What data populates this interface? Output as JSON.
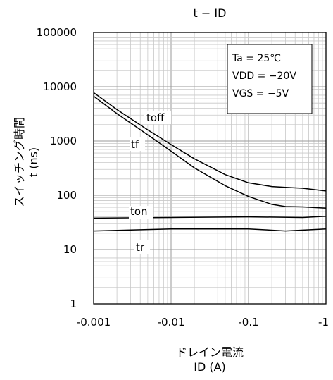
{
  "chart_data": {
    "type": "line",
    "title": "t − ID",
    "xlabel": "ドレイン電流",
    "xlabel_unit": "ID (A)",
    "ylabel": "スイッチング時間",
    "ylabel_unit": "t (ns)",
    "x_scale": "log",
    "y_scale": "log",
    "xlim": [
      -0.001,
      -1
    ],
    "ylim": [
      1,
      100000
    ],
    "x_tick_labels": [
      "-0.001",
      "-0.01",
      "-0.1",
      "-1"
    ],
    "y_tick_labels": [
      "100000",
      "10000",
      "1000",
      "100",
      "10",
      "1"
    ],
    "grid": true,
    "conditions": [
      "Ta = 25℃",
      "VDD = −20V",
      "VGS = −5V"
    ],
    "conditions_position": "top-right",
    "series": [
      {
        "name": "toff",
        "x": [
          -0.001,
          -0.002,
          -0.005,
          -0.01,
          -0.02,
          -0.05,
          -0.1,
          -0.2,
          -0.3,
          -0.5,
          -1
        ],
        "y": [
          7800,
          3800,
          1600,
          860,
          470,
          240,
          170,
          145,
          140,
          135,
          120
        ]
      },
      {
        "name": "tf",
        "x": [
          -0.001,
          -0.002,
          -0.005,
          -0.01,
          -0.02,
          -0.05,
          -0.1,
          -0.2,
          -0.3,
          -0.5,
          -1
        ],
        "y": [
          6700,
          3200,
          1300,
          650,
          320,
          150,
          95,
          68,
          62,
          61,
          58
        ]
      },
      {
        "name": "ton",
        "x": [
          -0.001,
          -0.01,
          -0.1,
          -0.5,
          -1
        ],
        "y": [
          38,
          39,
          40,
          39,
          41
        ]
      },
      {
        "name": "tr",
        "x": [
          -0.001,
          -0.01,
          -0.1,
          -0.3,
          -1
        ],
        "y": [
          22,
          24,
          24,
          22,
          24
        ]
      }
    ]
  }
}
